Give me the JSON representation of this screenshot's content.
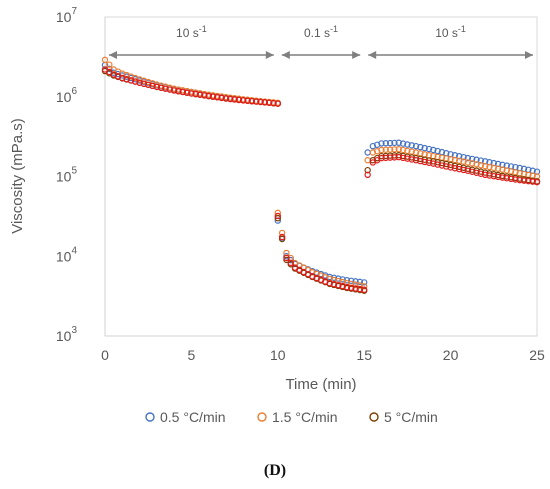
{
  "panel_label": "(D)",
  "chart_data": {
    "type": "scatter",
    "title": "",
    "xlabel": "Time (min)",
    "ylabel": "Viscosity (mPa.s)",
    "xlim": [
      0,
      25
    ],
    "ylim_log10": [
      3,
      7
    ],
    "y_scale": "log",
    "x_ticks": [
      0,
      5,
      10,
      15,
      20,
      25
    ],
    "x_tick_labels": [
      "0",
      "5",
      "10",
      "15",
      "20",
      "25"
    ],
    "y_ticks_log10": [
      3,
      4,
      5,
      6,
      7
    ],
    "y_tick_labels": [
      {
        "base": "10",
        "exp": "3"
      },
      {
        "base": "10",
        "exp": "4"
      },
      {
        "base": "10",
        "exp": "5"
      },
      {
        "base": "10",
        "exp": "6"
      },
      {
        "base": "10",
        "exp": "7"
      }
    ],
    "grid": false,
    "legend_position": "bottom",
    "shear_rate_annotations": [
      {
        "label": "10 s",
        "sup": "-1",
        "x_start": 0,
        "x_end": 10
      },
      {
        "label": "0.1 s",
        "sup": "-1",
        "x_start": 10,
        "x_end": 15
      },
      {
        "label": "10 s",
        "sup": "-1",
        "x_start": 15,
        "x_end": 25
      }
    ],
    "series": [
      {
        "name": "0.5 °C/min",
        "stroke": "#4472C4",
        "points": [
          [
            0,
            2500000
          ],
          [
            0.5,
            2000000
          ],
          [
            1,
            1850000
          ],
          [
            2,
            1600000
          ],
          [
            3,
            1400000
          ],
          [
            4,
            1250000
          ],
          [
            5,
            1150000
          ],
          [
            6,
            1050000
          ],
          [
            7,
            980000
          ],
          [
            8,
            920000
          ],
          [
            9,
            870000
          ],
          [
            10,
            830000
          ],
          [
            10,
            28000
          ],
          [
            10.5,
            10000
          ],
          [
            11,
            8000
          ],
          [
            12,
            6500
          ],
          [
            13,
            5500
          ],
          [
            14,
            5000
          ],
          [
            15,
            4700
          ],
          [
            15.2,
            200000
          ],
          [
            15.5,
            240000
          ],
          [
            16,
            260000
          ],
          [
            17,
            265000
          ],
          [
            18,
            240000
          ],
          [
            19,
            215000
          ],
          [
            20,
            190000
          ],
          [
            21,
            170000
          ],
          [
            22,
            155000
          ],
          [
            23,
            140000
          ],
          [
            24,
            128000
          ],
          [
            25,
            115000
          ]
        ]
      },
      {
        "name": "1.5 °C/min",
        "stroke": "#ED7D31",
        "points": [
          [
            0,
            2900000
          ],
          [
            0.5,
            2200000
          ],
          [
            1,
            1950000
          ],
          [
            2,
            1650000
          ],
          [
            3,
            1420000
          ],
          [
            4,
            1260000
          ],
          [
            5,
            1150000
          ],
          [
            6,
            1060000
          ],
          [
            7,
            990000
          ],
          [
            8,
            930000
          ],
          [
            9,
            880000
          ],
          [
            10,
            840000
          ],
          [
            10,
            35000
          ],
          [
            10.5,
            11000
          ],
          [
            11,
            8200
          ],
          [
            12,
            6300
          ],
          [
            13,
            5200
          ],
          [
            14,
            4600
          ],
          [
            15,
            4200
          ],
          [
            15.2,
            160000
          ],
          [
            15.5,
            200000
          ],
          [
            16,
            215000
          ],
          [
            17,
            220000
          ],
          [
            18,
            200000
          ],
          [
            19,
            180000
          ],
          [
            20,
            165000
          ],
          [
            21,
            150000
          ],
          [
            22,
            135000
          ],
          [
            23,
            122000
          ],
          [
            24,
            110000
          ],
          [
            25,
            100000
          ]
        ]
      },
      {
        "name": "5 °C/min",
        "stroke": "#7B3F00",
        "points": [
          [
            0,
            2100000
          ],
          [
            0.5,
            1850000
          ],
          [
            1,
            1700000
          ],
          [
            2,
            1500000
          ],
          [
            3,
            1330000
          ],
          [
            4,
            1200000
          ],
          [
            5,
            1100000
          ],
          [
            6,
            1020000
          ],
          [
            7,
            950000
          ],
          [
            8,
            900000
          ],
          [
            9,
            860000
          ],
          [
            10,
            820000
          ],
          [
            10,
            30000
          ],
          [
            10.5,
            9000
          ],
          [
            11,
            7000
          ],
          [
            12,
            5500
          ],
          [
            13,
            4500
          ],
          [
            14,
            4000
          ],
          [
            15,
            3700
          ],
          [
            15.2,
            120000
          ],
          [
            15.5,
            160000
          ],
          [
            16,
            180000
          ],
          [
            17,
            185000
          ],
          [
            18,
            170000
          ],
          [
            19,
            155000
          ],
          [
            20,
            140000
          ],
          [
            21,
            125000
          ],
          [
            22,
            112000
          ],
          [
            23,
            102000
          ],
          [
            24,
            94000
          ],
          [
            25,
            87000
          ]
        ]
      },
      {
        "name": "",
        "stroke": "#E41A1C",
        "points": [
          [
            0,
            2200000
          ],
          [
            0.5,
            1900000
          ],
          [
            1,
            1720000
          ],
          [
            2,
            1500000
          ],
          [
            3,
            1330000
          ],
          [
            4,
            1200000
          ],
          [
            5,
            1100000
          ],
          [
            6,
            1020000
          ],
          [
            7,
            950000
          ],
          [
            8,
            900000
          ],
          [
            9,
            860000
          ],
          [
            10,
            820000
          ],
          [
            10,
            32000
          ],
          [
            10.5,
            9500
          ],
          [
            11,
            7200
          ],
          [
            12,
            5600
          ],
          [
            13,
            4600
          ],
          [
            14,
            4100
          ],
          [
            15,
            3800
          ],
          [
            15.2,
            105000
          ],
          [
            15.5,
            150000
          ],
          [
            16,
            170000
          ],
          [
            17,
            175000
          ],
          [
            18,
            160000
          ],
          [
            19,
            145000
          ],
          [
            20,
            130000
          ],
          [
            21,
            118000
          ],
          [
            22,
            105000
          ],
          [
            23,
            97000
          ],
          [
            24,
            90000
          ],
          [
            25,
            85000
          ]
        ]
      }
    ]
  }
}
